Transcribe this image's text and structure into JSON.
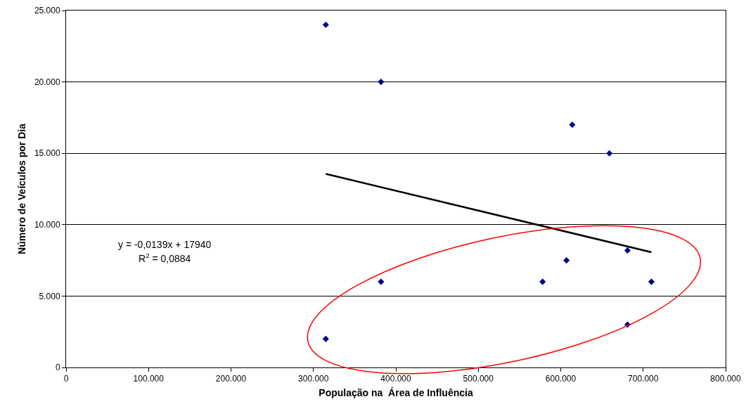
{
  "chart_data": {
    "type": "scatter",
    "xlabel": "População na  Área de Influência",
    "ylabel": "Número de Veículos por Dia",
    "series": [
      {
        "color": "#000080",
        "marker": "diamond",
        "x": [
          315000,
          382000,
          614000,
          659000,
          681000,
          607000,
          578000,
          382000,
          710000,
          681000,
          315000
        ],
        "values": [
          24000,
          20000,
          17000,
          15000,
          8200,
          7500,
          6000,
          6000,
          6000,
          3000,
          2000
        ]
      },
      {
        "type": "line",
        "color": "#000000",
        "marker": "none",
        "line_style": "solid",
        "x": [
          315000,
          710000
        ],
        "values": [
          13560,
          8070
        ]
      }
    ],
    "annotations": [
      "y = -0,0139x + 17940",
      "R$^{2}$ = 0,0884"
    ],
    "xlim": [
      0,
      800000
    ],
    "xticks": [
      0,
      {
        "value": 100000,
        "label": "100.000"
      },
      {
        "value": 200000,
        "label": "200.000"
      },
      {
        "value": 300000,
        "label": "300.000"
      },
      {
        "value": 400000,
        "label": "400.000"
      },
      {
        "value": 500000,
        "label": "500.000"
      },
      {
        "value": 600000,
        "label": "600.000"
      },
      {
        "value": 700000,
        "label": "700.000"
      },
      {
        "value": 800000,
        "label": "800.000"
      }
    ],
    "ylim": [
      0,
      25000
    ],
    "yticks": [
      0,
      {
        "value": 5000,
        "label": "5.000"
      },
      {
        "value": 10000,
        "label": "10.000"
      },
      {
        "value": 15000,
        "label": "15.000"
      },
      {
        "value": 20000,
        "label": "20.000"
      },
      {
        "value": 25000,
        "label": "25.000"
      }
    ],
    "grid": "y"
  }
}
